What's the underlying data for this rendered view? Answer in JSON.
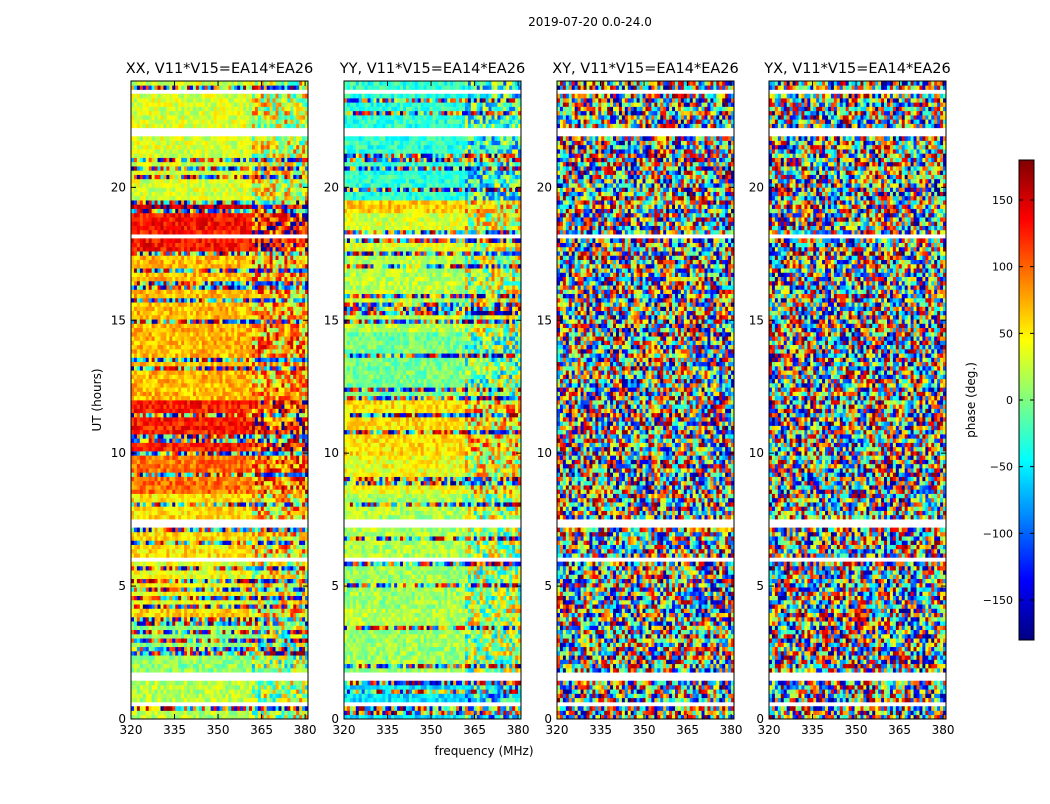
{
  "chart_data": {
    "type": "heatmap",
    "suptitle": "2019-07-20 0.0-24.0",
    "xlabel": "frequency (MHz)",
    "ylabel": "UT (hours)",
    "xlim": [
      320,
      381
    ],
    "ylim": [
      0,
      24
    ],
    "xticks": [
      320,
      335,
      350,
      365,
      380
    ],
    "yticks": [
      0,
      5,
      10,
      15,
      20
    ],
    "panels": [
      {
        "title": "XX, V11*V15=EA14*EA26",
        "mode": "XX"
      },
      {
        "title": "YY, V11*V15=EA14*EA26",
        "mode": "YY"
      },
      {
        "title": "XY, V11*V15=EA14*EA26",
        "mode": "NOISE"
      },
      {
        "title": "YX, V11*V15=EA14*EA26",
        "mode": "NOISE"
      }
    ],
    "colorbar": {
      "label": "phase (deg.)",
      "range": [
        -180,
        180
      ],
      "ticks": [
        150,
        100,
        50,
        0,
        -50,
        -100,
        -150
      ],
      "tick_labels": [
        "150",
        "100",
        "50",
        "0",
        "−50",
        "−100",
        "−150"
      ],
      "colormap": "jet"
    },
    "flagged_hours": [
      [
        0.55,
        0.62
      ],
      [
        1.45,
        1.7
      ],
      [
        2.85,
        2.95
      ],
      [
        5.95,
        6.15
      ],
      [
        7.2,
        7.45
      ],
      [
        18.15,
        18.3
      ],
      [
        22.0,
        22.3
      ],
      [
        23.55,
        23.65
      ]
    ],
    "band_phase_xx": [
      [
        0,
        1.5,
        20
      ],
      [
        1.5,
        3.5,
        5
      ],
      [
        3.5,
        4.2,
        60
      ],
      [
        4.2,
        6,
        40
      ],
      [
        6,
        8.5,
        55
      ],
      [
        8.5,
        10,
        95
      ],
      [
        10,
        12,
        125
      ],
      [
        12,
        14.5,
        70
      ],
      [
        14.5,
        17.5,
        70
      ],
      [
        17.5,
        19,
        130
      ],
      [
        19,
        19.6,
        160
      ],
      [
        19.6,
        24,
        30
      ]
    ],
    "band_phase_yy": [
      [
        0,
        1.5,
        -55
      ],
      [
        1.5,
        3.5,
        10
      ],
      [
        3.5,
        4.2,
        20
      ],
      [
        4.2,
        6,
        10
      ],
      [
        6,
        8.5,
        15
      ],
      [
        8.5,
        10,
        40
      ],
      [
        10,
        12,
        55
      ],
      [
        12,
        14.5,
        -5
      ],
      [
        14.5,
        17.5,
        20
      ],
      [
        17.5,
        19,
        30
      ],
      [
        19,
        19.6,
        60
      ],
      [
        19.6,
        24,
        -30
      ]
    ]
  }
}
